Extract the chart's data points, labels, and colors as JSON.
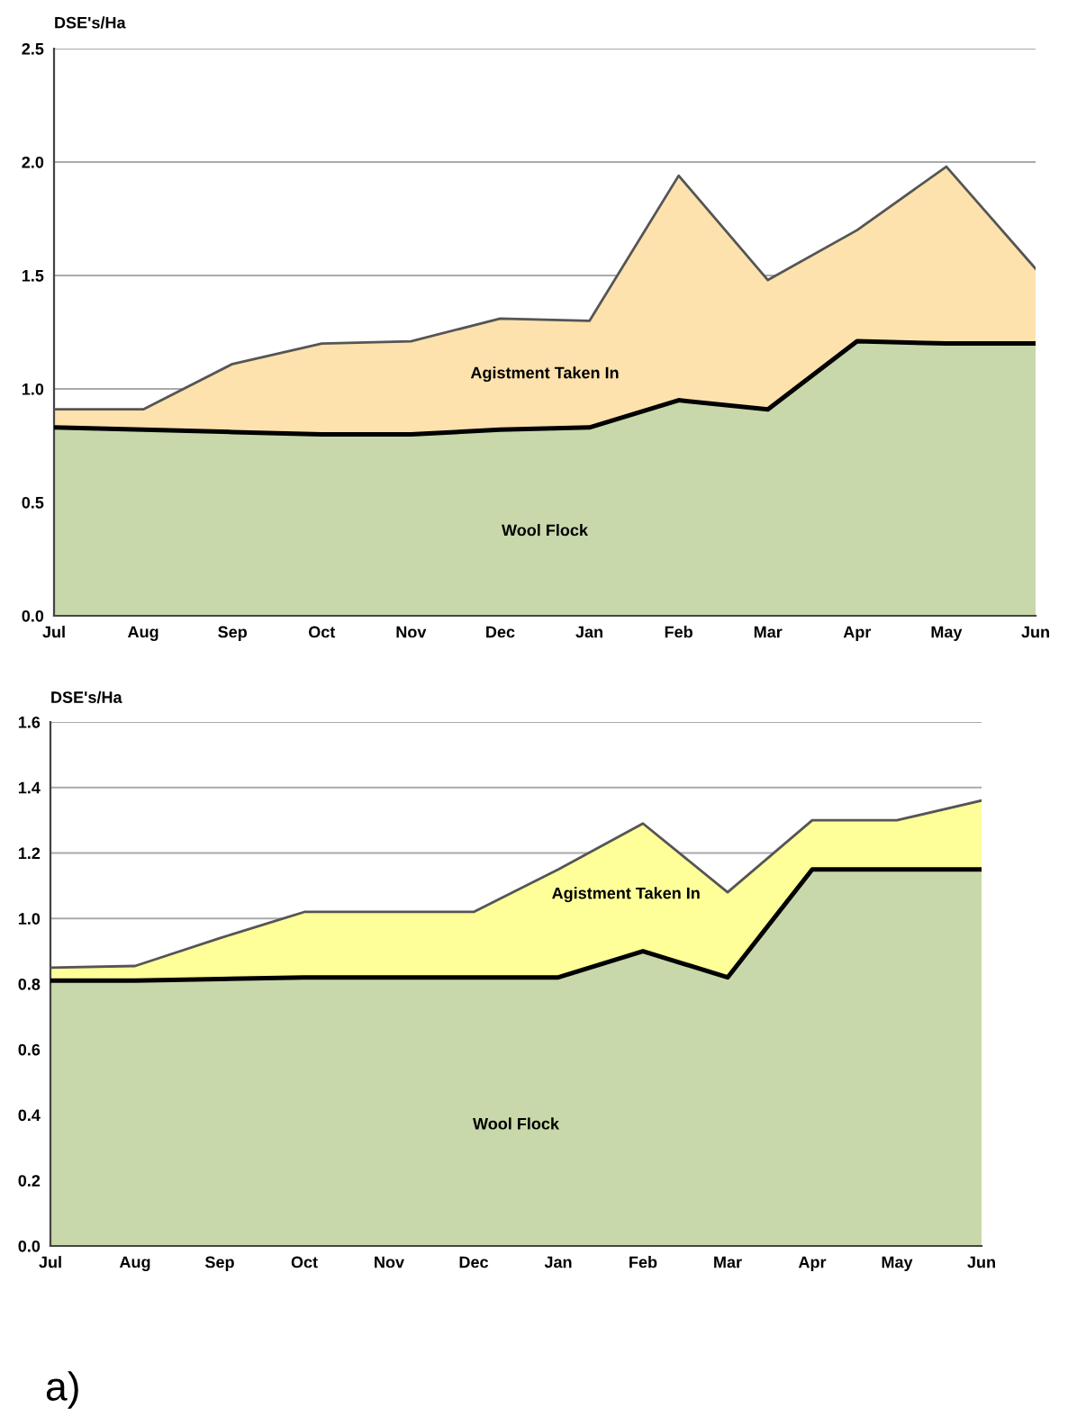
{
  "chart_data": [
    {
      "type": "area",
      "stacked": true,
      "ylabel": "DSE's/Ha",
      "categories": [
        "Jul",
        "Aug",
        "Sep",
        "Oct",
        "Nov",
        "Dec",
        "Jan",
        "Feb",
        "Mar",
        "Apr",
        "May",
        "Jun"
      ],
      "ylim": [
        0,
        2.5
      ],
      "yticks": [
        {
          "value": 0,
          "label": "0.0"
        },
        {
          "value": 0.5,
          "label": "0.5"
        },
        {
          "value": 1,
          "label": "1.0"
        },
        {
          "value": 1.5,
          "label": "1.5"
        },
        {
          "value": 2,
          "label": "2.0"
        },
        {
          "value": 2.5,
          "label": "2.5"
        }
      ],
      "grid": "y",
      "legend": false,
      "series": [
        {
          "name": "Wool Flock",
          "color": "#c8d8aa",
          "values": [
            0.83,
            0.82,
            0.81,
            0.8,
            0.8,
            0.82,
            0.83,
            0.95,
            0.91,
            1.21,
            1.2,
            1.2
          ]
        },
        {
          "name": "Agistment Taken In",
          "color": "#fde2ad",
          "values": [
            0.08,
            0.09,
            0.3,
            0.4,
            0.41,
            0.49,
            0.47,
            0.99,
            0.57,
            0.49,
            0.78,
            0.33
          ]
        }
      ]
    },
    {
      "type": "area",
      "stacked": true,
      "ylabel": "DSE's/Ha",
      "categories": [
        "Jul",
        "Aug",
        "Sep",
        "Oct",
        "Nov",
        "Dec",
        "Jan",
        "Feb",
        "Mar",
        "Apr",
        "May",
        "Jun"
      ],
      "ylim": [
        0,
        1.6
      ],
      "yticks": [
        {
          "value": 0,
          "label": "0.0"
        },
        0.2,
        0.4,
        0.6,
        0.8,
        {
          "value": 1,
          "label": "1.0"
        },
        1.2,
        1.4,
        1.6
      ],
      "grid": "y",
      "legend": false,
      "series": [
        {
          "name": "Wool Flock",
          "color": "#c8d8aa",
          "values": [
            0.81,
            0.81,
            0.815,
            0.82,
            0.82,
            0.82,
            0.82,
            0.9,
            0.82,
            1.15,
            1.15,
            1.15
          ]
        },
        {
          "name": "Agistment Taken In",
          "color": "#ffff99",
          "values": [
            0.04,
            0.045,
            0.125,
            0.2,
            0.2,
            0.2,
            0.33,
            0.39,
            0.26,
            0.15,
            0.15,
            0.21
          ]
        }
      ],
      "annotations": [
        "a)"
      ]
    }
  ]
}
